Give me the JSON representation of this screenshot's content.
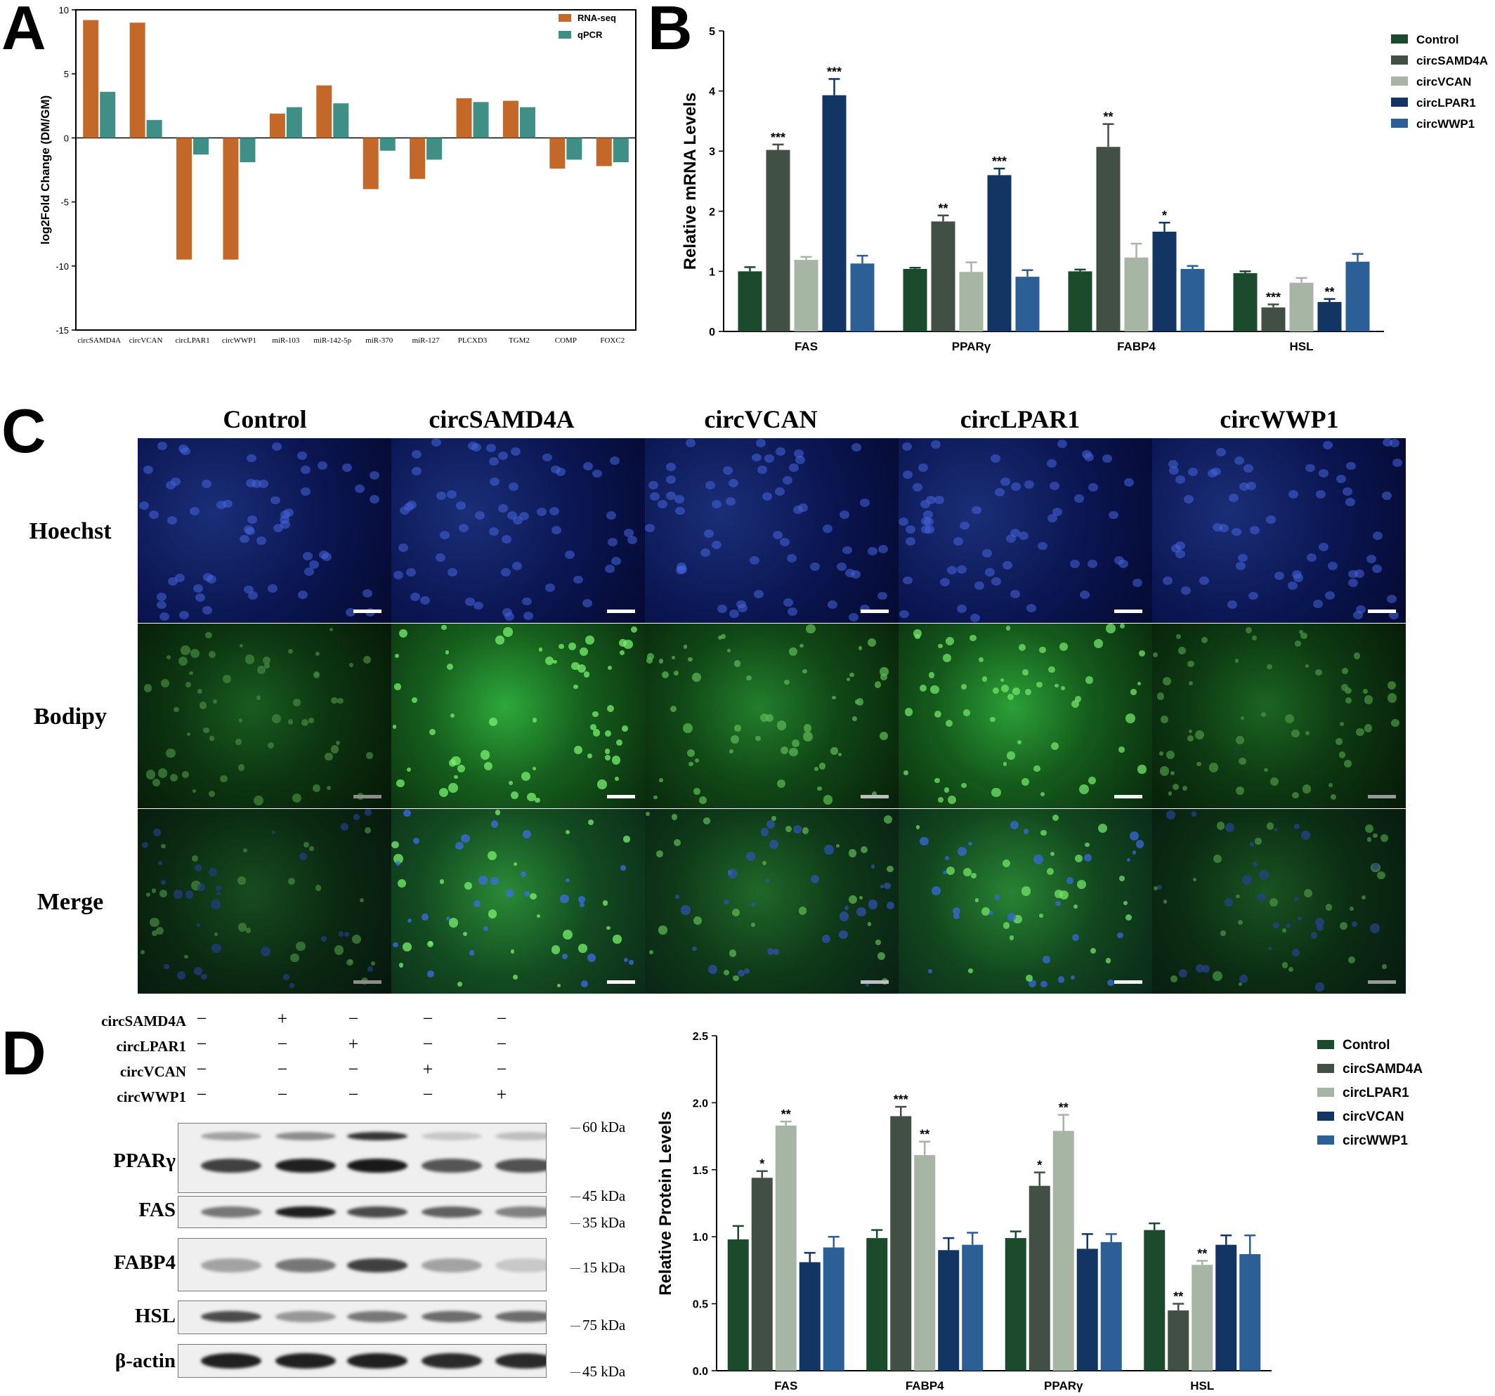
{
  "panel_letters": {
    "a": "A",
    "b": "B",
    "c": "C",
    "d": "D"
  },
  "chart_data": [
    {
      "id": "A",
      "type": "bar",
      "ylabel": "log2Fold Change (DM/GM)",
      "ylim": [
        -15,
        10
      ],
      "yticks": [
        10,
        5,
        0,
        -5,
        -10,
        -15
      ],
      "categories": [
        "circSAMD4A",
        "circVCAN",
        "circLPAR1",
        "circWWP1",
        "miR-103",
        "miR-142-5p",
        "miR-370",
        "miR-127",
        "PLCXD3",
        "TGM2",
        "COMP",
        "FOXC2"
      ],
      "series": [
        {
          "name": "RNA-seq",
          "color": "#c4682a",
          "values": [
            9.2,
            9.0,
            -9.5,
            -9.5,
            1.9,
            4.1,
            -4.0,
            -3.2,
            3.1,
            2.9,
            -2.4,
            -2.2
          ]
        },
        {
          "name": "qPCR",
          "color": "#3f8f86",
          "values": [
            3.6,
            1.4,
            -1.3,
            -1.9,
            2.4,
            2.7,
            -1.0,
            -1.7,
            2.8,
            2.4,
            -1.7,
            -1.9
          ]
        }
      ],
      "legend_position": "top-right",
      "grid": false
    },
    {
      "id": "B",
      "type": "bar",
      "ylabel": "Relative  mRNA Levels",
      "ylim": [
        0,
        5
      ],
      "yticks": [
        0,
        1,
        2,
        3,
        4,
        5
      ],
      "categories": [
        "FAS",
        "PPARγ",
        "FABP4",
        "HSL"
      ],
      "series": [
        {
          "name": "Control",
          "color": "#1b4a2c",
          "values": [
            1.0,
            1.04,
            1.0,
            0.97
          ],
          "errors": [
            0.07,
            0.02,
            0.03,
            0.03
          ],
          "sig": [
            "",
            "",
            "",
            ""
          ]
        },
        {
          "name": "circSAMD4A",
          "color": "#424f44",
          "values": [
            3.02,
            1.83,
            3.07,
            0.4
          ],
          "errors": [
            0.09,
            0.1,
            0.38,
            0.05
          ],
          "sig": [
            "***",
            "**",
            "**",
            "***"
          ]
        },
        {
          "name": "circVCAN",
          "color": "#a7b5a4",
          "values": [
            1.19,
            0.99,
            1.23,
            0.81
          ],
          "errors": [
            0.05,
            0.16,
            0.23,
            0.08
          ],
          "sig": [
            "",
            "",
            "",
            ""
          ]
        },
        {
          "name": "circLPAR1",
          "color": "#123563",
          "values": [
            3.93,
            2.6,
            1.66,
            0.49
          ],
          "errors": [
            0.27,
            0.11,
            0.15,
            0.05
          ],
          "sig": [
            "***",
            "***",
            "*",
            "**"
          ]
        },
        {
          "name": "circWWP1",
          "color": "#2c5f96",
          "values": [
            1.13,
            0.91,
            1.04,
            1.16
          ],
          "errors": [
            0.13,
            0.11,
            0.05,
            0.13
          ],
          "sig": [
            "",
            "",
            "",
            ""
          ]
        }
      ],
      "legend_position": "top-right",
      "grid": false
    },
    {
      "id": "D",
      "type": "bar",
      "ylabel": "Relative  Protein Levels",
      "ylim": [
        0,
        2.5
      ],
      "yticks": [
        0.0,
        0.5,
        1.0,
        1.5,
        2.0,
        2.5
      ],
      "ytick_labels": [
        "0.0",
        "0.5",
        "1.0",
        "1.5",
        "2.0",
        "2.5"
      ],
      "categories": [
        "FAS",
        "FABP4",
        "PPARγ",
        "HSL"
      ],
      "series": [
        {
          "name": "Control",
          "color": "#1b4a2c",
          "values": [
            0.98,
            0.99,
            0.99,
            1.05
          ],
          "errors": [
            0.1,
            0.06,
            0.05,
            0.05
          ],
          "sig": [
            "",
            "",
            "",
            ""
          ]
        },
        {
          "name": "circSAMD4A",
          "color": "#424f44",
          "values": [
            1.44,
            1.9,
            1.38,
            0.45
          ],
          "errors": [
            0.05,
            0.07,
            0.1,
            0.05
          ],
          "sig": [
            "*",
            "***",
            "*",
            "**"
          ]
        },
        {
          "name": "circLPAR1",
          "color": "#a7b5a4",
          "values": [
            1.83,
            1.61,
            1.79,
            0.79
          ],
          "errors": [
            0.03,
            0.1,
            0.12,
            0.03
          ],
          "sig": [
            "**",
            "**",
            "**",
            "**"
          ]
        },
        {
          "name": "circVCAN",
          "color": "#123563",
          "values": [
            0.81,
            0.9,
            0.91,
            0.94
          ],
          "errors": [
            0.07,
            0.09,
            0.11,
            0.07
          ],
          "sig": [
            "",
            "",
            "",
            ""
          ]
        },
        {
          "name": "circWWP1",
          "color": "#2c5f96",
          "values": [
            0.92,
            0.94,
            0.96,
            0.87
          ],
          "errors": [
            0.08,
            0.09,
            0.06,
            0.14
          ],
          "sig": [
            "",
            "",
            "",
            ""
          ]
        }
      ],
      "legend_position": "top-right",
      "grid": false
    }
  ],
  "panel_c": {
    "columns": [
      "Control",
      "circSAMD4A",
      "circVCAN",
      "circLPAR1",
      "circWWP1"
    ],
    "rows": [
      "Hoechst",
      "Bodipy",
      "Merge"
    ],
    "colors": {
      "hoechst": "#0a1a55",
      "bodipy": "#1fa52a",
      "merge_bg": "#0c3a14"
    }
  },
  "panel_d_blot": {
    "treatments": [
      {
        "label": "circSAMD4A",
        "signs": [
          "−",
          "+",
          "−",
          "−",
          "−"
        ]
      },
      {
        "label": "circLPAR1",
        "signs": [
          "−",
          "−",
          "+",
          "−",
          "−"
        ]
      },
      {
        "label": "circVCAN",
        "signs": [
          "−",
          "−",
          "−",
          "+",
          "−"
        ]
      },
      {
        "label": "circWWP1",
        "signs": [
          "−",
          "−",
          "−",
          "−",
          "+"
        ]
      }
    ],
    "proteins": [
      "PPARγ",
      "FAS",
      "FABP4",
      "HSL",
      "β-actin"
    ],
    "markers": [
      "60 kDa",
      "45 kDa",
      "35 kDa",
      "15 kDa",
      "75 kDa",
      "45 kDa"
    ]
  }
}
